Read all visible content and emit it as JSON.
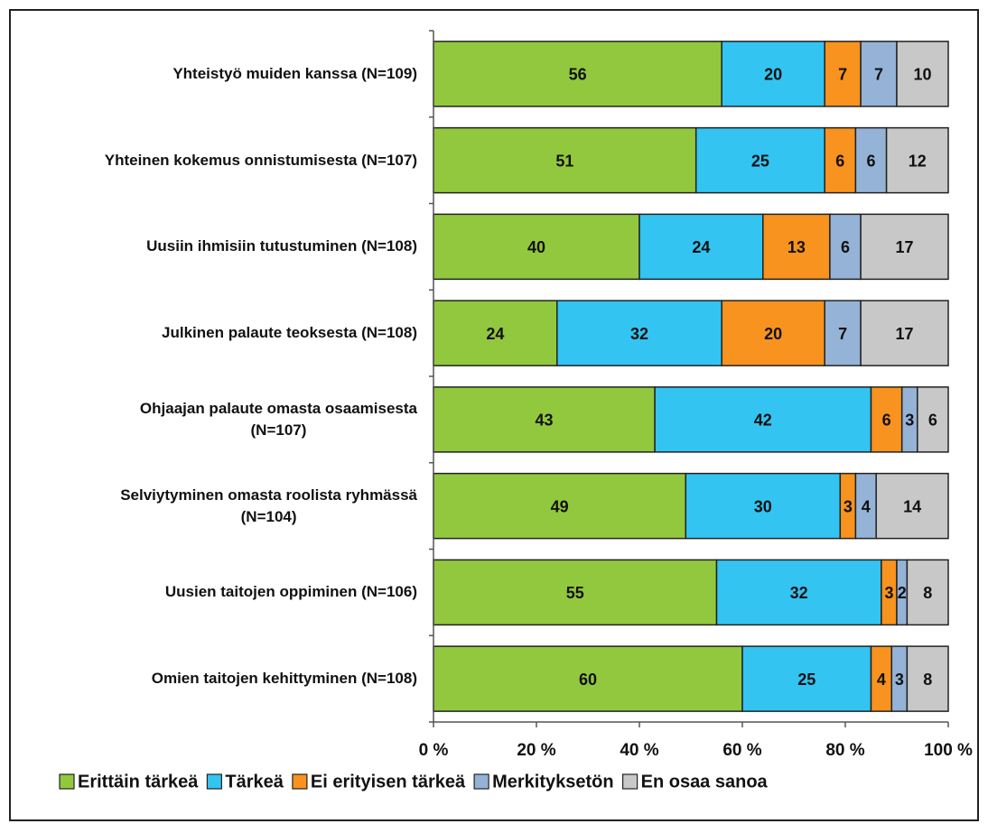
{
  "chart_data": {
    "type": "stacked-bar-horizontal",
    "categories": [
      "Yhteistyö muiden kanssa (N=109)",
      "Yhteinen kokemus onnistumisesta (N=107)",
      "Uusiin ihmisiin tutustuminen (N=108)",
      "Julkinen palaute teoksesta (N=108)",
      "Ohjaajan palaute omasta osaamisesta\n(N=107)",
      "Selviytyminen omasta roolista ryhmässä\n(N=104)",
      "Uusien taitojen oppiminen (N=106)",
      "Omien taitojen kehittyminen (N=108)"
    ],
    "series": [
      {
        "name": "Erittäin tärkeä",
        "color": "#92c83e",
        "values": [
          56,
          51,
          40,
          24,
          43,
          49,
          55,
          60
        ]
      },
      {
        "name": "Tärkeä",
        "color": "#33c4f2",
        "values": [
          20,
          25,
          24,
          32,
          42,
          30,
          32,
          25
        ]
      },
      {
        "name": "Ei erityisen tärkeä",
        "color": "#f7931e",
        "values": [
          7,
          6,
          13,
          20,
          6,
          3,
          3,
          4
        ]
      },
      {
        "name": "Merkityksetön",
        "color": "#95b3d7",
        "values": [
          7,
          6,
          6,
          7,
          3,
          4,
          2,
          3
        ]
      },
      {
        "name": "En osaa sanoa",
        "color": "#c8c8c8",
        "values": [
          10,
          12,
          17,
          17,
          6,
          14,
          8,
          8
        ]
      }
    ],
    "xlim": [
      0,
      100
    ],
    "xticks": [
      {
        "value": 0,
        "label": "0 %"
      },
      {
        "value": 20,
        "label": "20 %"
      },
      {
        "value": 40,
        "label": "40 %"
      },
      {
        "value": 60,
        "label": "60 %"
      },
      {
        "value": 80,
        "label": "80 %"
      },
      {
        "value": 100,
        "label": "100 %"
      }
    ],
    "legend": "bottom"
  }
}
